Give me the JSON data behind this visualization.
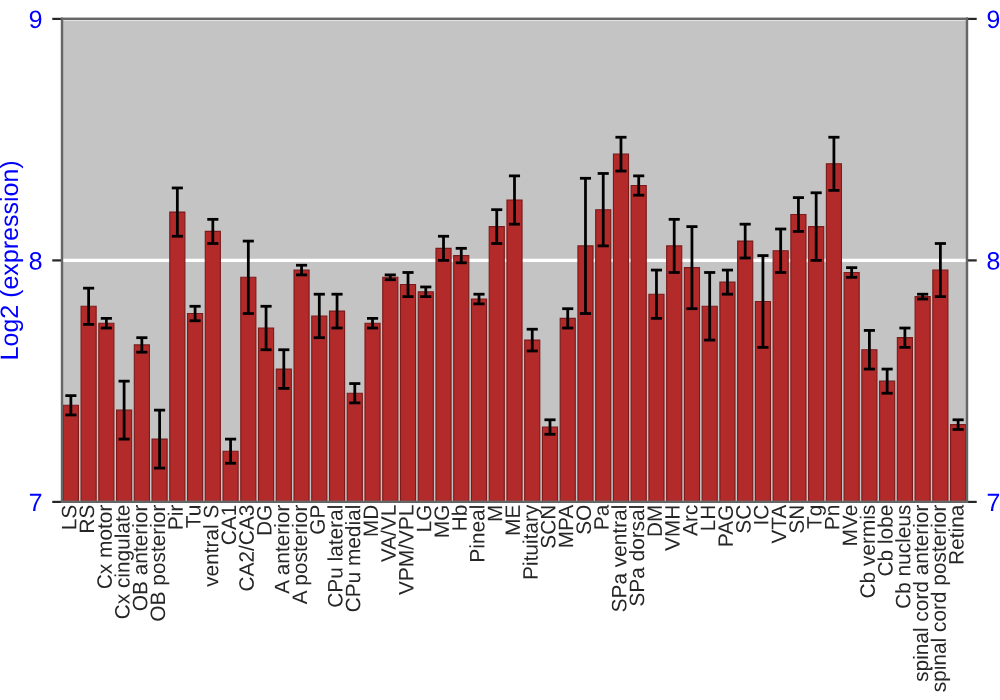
{
  "chart_data": {
    "type": "bar",
    "ylabel": "Log2 (expression)",
    "categories": [
      "LS",
      "RS",
      "Cx motor",
      "Cx cingulate",
      "OB anterior",
      "OB posterior",
      "Pir",
      "Tu",
      "ventral S",
      "CA1",
      "CA2/CA3",
      "DG",
      "A anterior",
      "A posterior",
      "GP",
      "CPu lateral",
      "CPu medial",
      "MD",
      "VA/VL",
      "VPM/VPL",
      "LG",
      "MG",
      "Hb",
      "Pineal",
      "M",
      "ME",
      "Pituitary",
      "SCN",
      "MPA",
      "SO",
      "Pa",
      "SPa ventral",
      "SPa dorsal",
      "DM",
      "VMH",
      "Arc",
      "LH",
      "PAG",
      "SC",
      "IC",
      "VTA",
      "SN",
      "Tg",
      "Pn",
      "MVe",
      "Cb vermis",
      "Cb lobe",
      "Cb nucleus",
      "spinal cord anterior",
      "spinal cord posterior",
      "Retina"
    ],
    "values": [
      7.4,
      7.81,
      7.74,
      7.38,
      7.65,
      7.26,
      8.2,
      7.78,
      8.12,
      7.21,
      7.93,
      7.72,
      7.55,
      7.96,
      7.77,
      7.79,
      7.45,
      7.74,
      7.93,
      7.9,
      7.87,
      8.05,
      8.02,
      7.84,
      8.14,
      8.25,
      7.67,
      7.31,
      7.76,
      8.06,
      8.21,
      8.44,
      8.31,
      7.86,
      8.06,
      7.97,
      7.81,
      7.91,
      8.08,
      7.83,
      8.04,
      8.19,
      8.14,
      8.4,
      7.95,
      7.63,
      7.5,
      7.68,
      7.85,
      7.96,
      7.32
    ],
    "errors": [
      0.04,
      0.075,
      0.02,
      0.12,
      0.03,
      0.12,
      0.1,
      0.03,
      0.05,
      0.05,
      0.15,
      0.09,
      0.08,
      0.02,
      0.09,
      0.07,
      0.04,
      0.02,
      0.01,
      0.05,
      0.02,
      0.05,
      0.03,
      0.02,
      0.07,
      0.1,
      0.045,
      0.03,
      0.04,
      0.28,
      0.15,
      0.07,
      0.04,
      0.1,
      0.11,
      0.17,
      0.14,
      0.05,
      0.07,
      0.19,
      0.09,
      0.07,
      0.14,
      0.11,
      0.02,
      0.08,
      0.05,
      0.04,
      0.01,
      0.11,
      0.02
    ],
    "color": "#b22a2a",
    "ylim": [
      7,
      9
    ],
    "yticks": [
      7,
      8,
      9
    ],
    "y2lim": [
      7,
      9
    ],
    "y2ticks": [
      7,
      8,
      9
    ],
    "grid": "y"
  }
}
